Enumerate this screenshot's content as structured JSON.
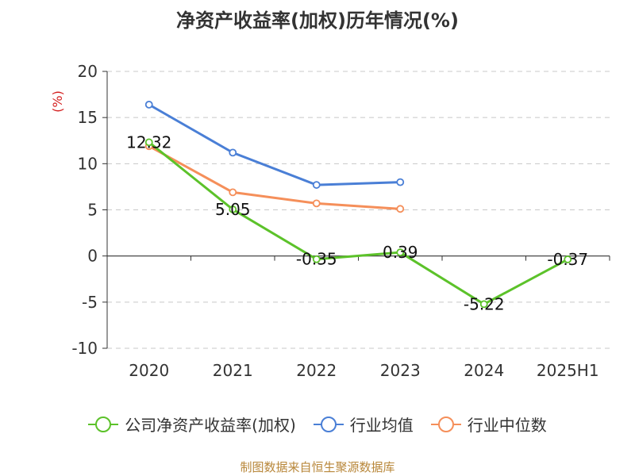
{
  "title": "净资产收益率(加权)历年情况(%)",
  "source": "制图数据来自恒生聚源数据库",
  "chart_data": {
    "type": "line",
    "title": "净资产收益率(加权)历年情况(%)",
    "ylabel": "(%)",
    "ylim": [
      -10,
      20
    ],
    "yticks": [
      20,
      15,
      10,
      5,
      0,
      -5,
      -10
    ],
    "categories": [
      "2020",
      "2021",
      "2022",
      "2023",
      "2024",
      "2025H1"
    ],
    "grid": true,
    "legend_position": "bottom",
    "series": [
      {
        "name": "公司净资产收益率(加权)",
        "color": "#5cc22a",
        "values": [
          12.32,
          5.05,
          -0.35,
          0.39,
          -5.22,
          -0.37
        ],
        "labels": [
          "12.32",
          "5.05",
          "-0.35",
          "0.39",
          "-5.22",
          "-0.37"
        ]
      },
      {
        "name": "行业均值",
        "color": "#4a7fd6",
        "values": [
          16.4,
          11.2,
          7.7,
          8.0,
          null,
          null
        ]
      },
      {
        "name": "行业中位数",
        "color": "#f58f5a",
        "values": [
          11.9,
          6.9,
          5.7,
          5.1,
          null,
          null
        ]
      }
    ]
  }
}
